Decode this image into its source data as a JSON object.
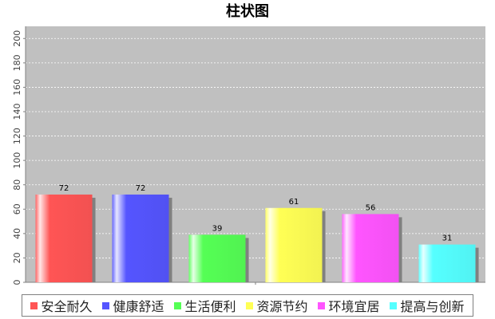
{
  "chart_data": {
    "type": "bar",
    "title": "柱状图",
    "categories": [
      "安全耐久",
      "健康舒适",
      "生活便利",
      "资源节约",
      "环境宜居",
      "提高与创新"
    ],
    "values": [
      72,
      72,
      39,
      61,
      56,
      31
    ],
    "colors": [
      "#ff5555",
      "#5555ff",
      "#55ff55",
      "#ffff55",
      "#ff55ff",
      "#55ffff"
    ],
    "ylim": [
      0,
      210
    ],
    "yticks": [
      0,
      20,
      40,
      60,
      80,
      100,
      120,
      140,
      160,
      180,
      200
    ],
    "ytick_labels": [
      "0",
      "20",
      "40",
      "60",
      "80",
      "100",
      "120",
      "140",
      "160",
      "180",
      "200"
    ],
    "xlabel": "",
    "ylabel": "",
    "grid": true,
    "legend_position": "bottom",
    "plot_background": "#c0c0c0",
    "data_labels": true
  }
}
